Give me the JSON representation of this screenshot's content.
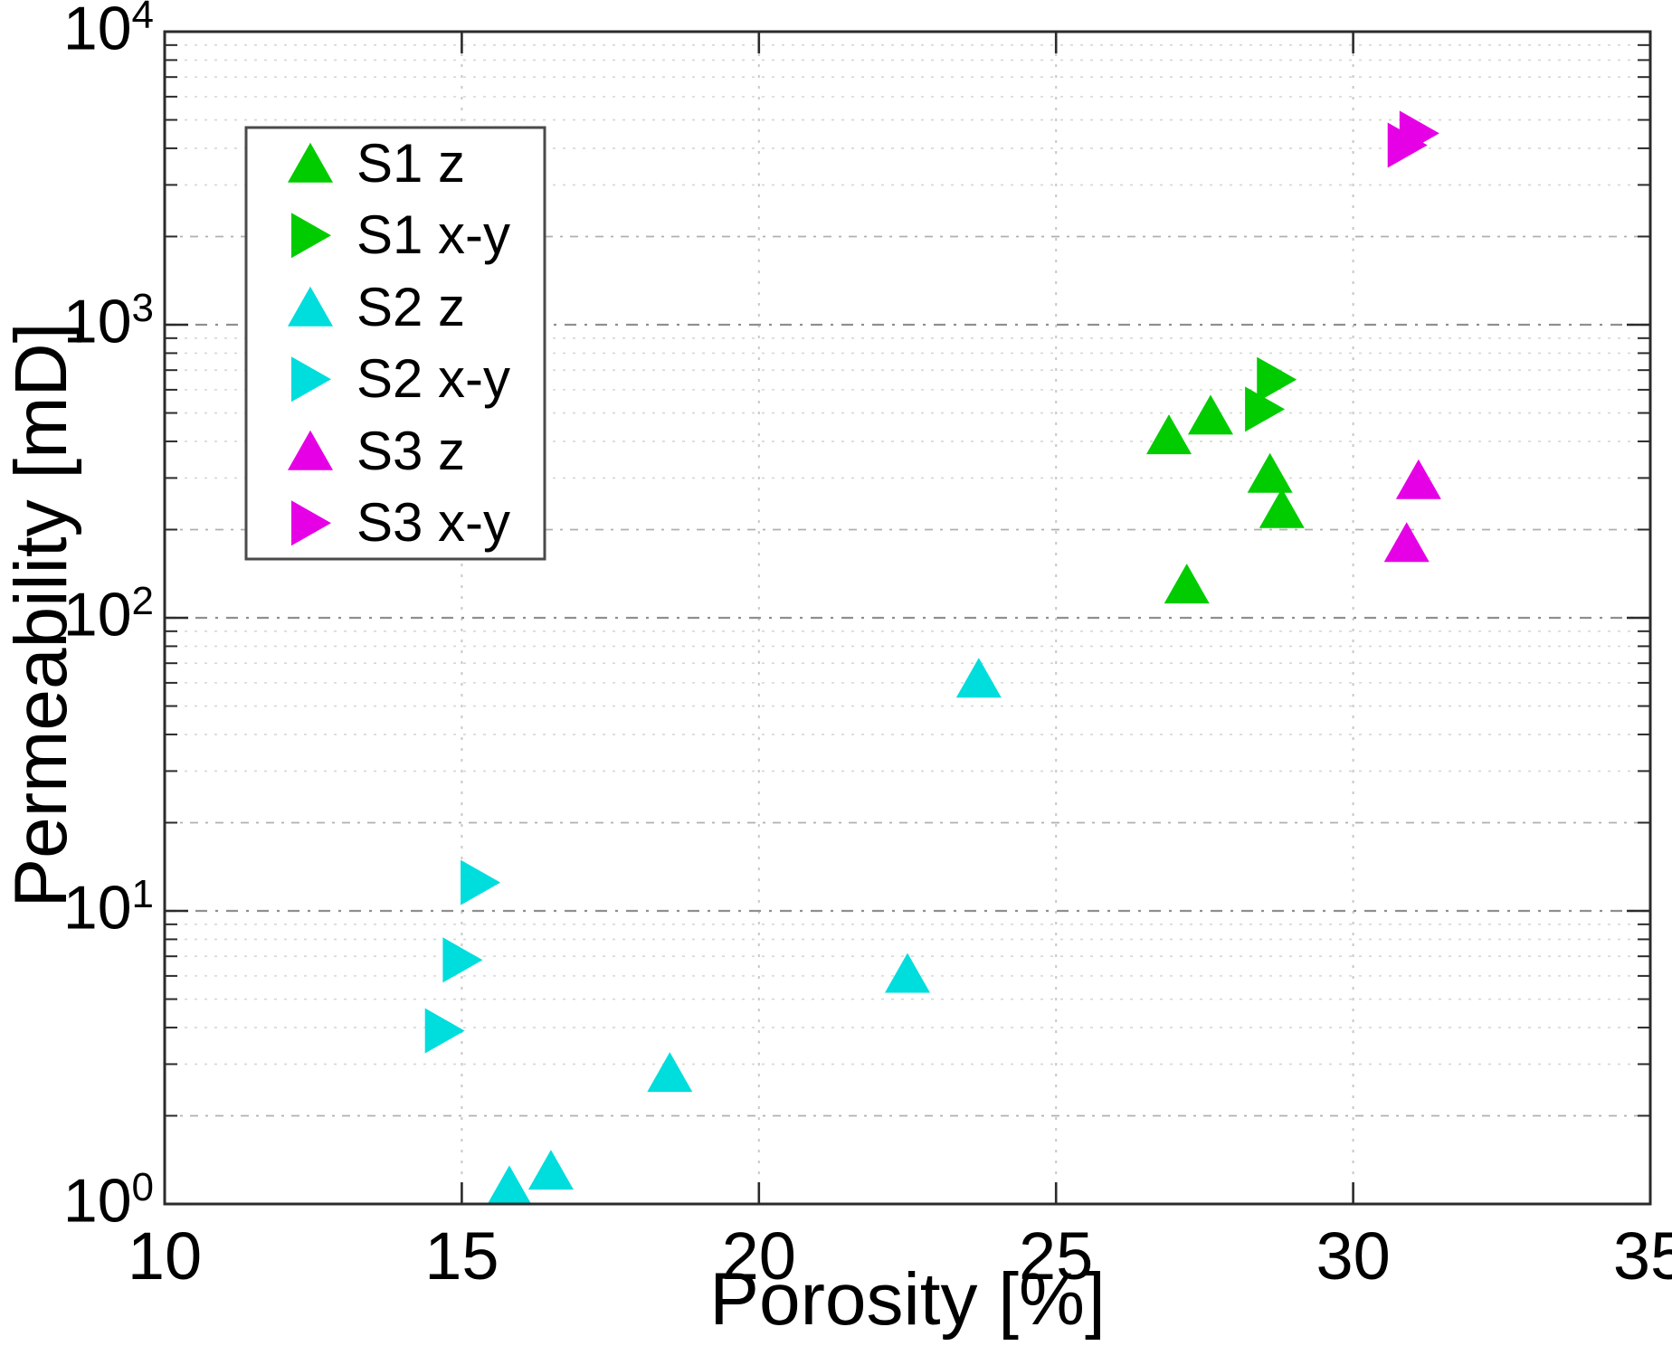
{
  "chart_data": {
    "type": "scatter",
    "title": "",
    "xlabel": "Porosity [%]",
    "ylabel": "Permeability [mD]",
    "xlim": [
      10,
      35
    ],
    "x_ticks": [
      10,
      15,
      20,
      25,
      30,
      35
    ],
    "y_scale": "log",
    "ylim": [
      1,
      10000
    ],
    "y_tick_exponents": [
      0,
      1,
      2,
      3,
      4
    ],
    "y_tick_base": "10",
    "grid": "on",
    "legend_position": "upper-left",
    "colors": {
      "s1": "#00cc00",
      "s2": "#00dddd",
      "s3": "#e600e6",
      "axis": "#2b2b2b",
      "grid_major": "#8f8f8f",
      "grid_minor": "#d6d6d6",
      "grid_minor2": "#b0b0b0",
      "legend_border": "#4a4a4a"
    },
    "series": [
      {
        "name": "S1 z",
        "marker": "triangle-up",
        "color": "#00cc00",
        "points": [
          [
            26.9,
            420
          ],
          [
            27.6,
            490
          ],
          [
            28.6,
            310
          ],
          [
            28.8,
            235
          ],
          [
            27.2,
            130
          ]
        ]
      },
      {
        "name": "S1 x-y",
        "marker": "triangle-right",
        "color": "#00cc00",
        "points": [
          [
            28.7,
            650
          ],
          [
            28.5,
            515
          ]
        ]
      },
      {
        "name": "S2 z",
        "marker": "triangle-up",
        "color": "#00dddd",
        "points": [
          [
            23.7,
            62
          ],
          [
            22.5,
            6.1
          ],
          [
            18.5,
            2.8
          ],
          [
            15.8,
            1.15
          ],
          [
            16.5,
            1.3
          ]
        ]
      },
      {
        "name": "S2 x-y",
        "marker": "triangle-right",
        "color": "#00dddd",
        "points": [
          [
            15.3,
            12.5
          ],
          [
            15.0,
            6.8
          ],
          [
            14.7,
            3.9
          ]
        ]
      },
      {
        "name": "S3 z",
        "marker": "triangle-up",
        "color": "#e600e6",
        "points": [
          [
            31.1,
            295
          ],
          [
            30.9,
            180
          ]
        ]
      },
      {
        "name": "S3 x-y",
        "marker": "triangle-right",
        "color": "#e600e6",
        "points": [
          [
            31.1,
            4500
          ],
          [
            30.9,
            4100
          ]
        ]
      }
    ]
  }
}
